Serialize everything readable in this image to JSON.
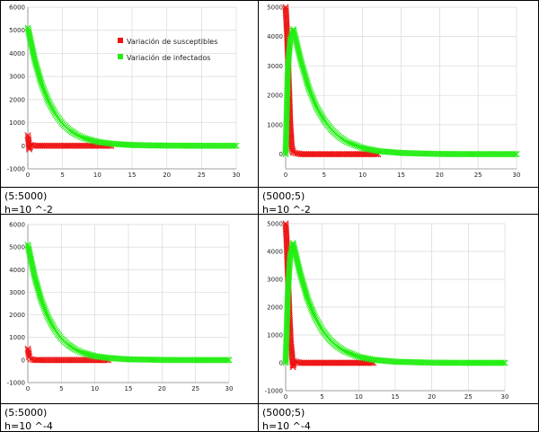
{
  "legend": {
    "susceptible_label": "Variación de susceptibles",
    "infected_label": "Variación de infectados"
  },
  "colors": {
    "susceptible": "#ee1111",
    "infected": "#22ee11",
    "grid": "#d8d8d8",
    "axis": "#888888"
  },
  "panels": [
    {
      "caption_line1": "(5:5000)",
      "caption_line2": "h=10 ^-2",
      "show_legend": true
    },
    {
      "caption_line1": "(5000;5)",
      "caption_line2": "h=10 ^-2",
      "show_legend": false
    },
    {
      "caption_line1": "(5:5000)",
      "caption_line2": "h=10 ^-4",
      "show_legend": false
    },
    {
      "caption_line1": "(5000;5)",
      "caption_line2": "h=10 ^-4",
      "show_legend": false
    }
  ],
  "chart_data": [
    {
      "type": "scatter",
      "marker": "x",
      "xlim": [
        0,
        30
      ],
      "ylim": [
        -1000,
        6000
      ],
      "xticks": [
        0,
        5,
        10,
        15,
        20,
        25,
        30
      ],
      "yticks": [
        -1000,
        0,
        1000,
        2000,
        3000,
        4000,
        5000,
        6000
      ],
      "grid": true,
      "legend": "top-center",
      "series": [
        {
          "name": "Variación de susceptibles",
          "points": [
            [
              0,
              450
            ],
            [
              0.1,
              200
            ],
            [
              0.2,
              -150
            ],
            [
              0.4,
              30
            ],
            [
              1,
              0
            ],
            [
              2,
              0
            ],
            [
              4,
              0
            ],
            [
              6,
              0
            ],
            [
              8,
              0
            ],
            [
              10,
              0
            ],
            [
              12,
              0
            ]
          ]
        },
        {
          "name": "Variación de infectados",
          "points": [
            [
              0,
              5100
            ],
            [
              0.5,
              4400
            ],
            [
              1,
              3700
            ],
            [
              2,
              2650
            ],
            [
              3,
              1900
            ],
            [
              4,
              1350
            ],
            [
              5,
              950
            ],
            [
              6,
              680
            ],
            [
              7,
              480
            ],
            [
              8,
              340
            ],
            [
              10,
              170
            ],
            [
              12,
              90
            ],
            [
              15,
              30
            ],
            [
              20,
              5
            ],
            [
              25,
              0
            ],
            [
              30,
              0
            ]
          ]
        }
      ]
    },
    {
      "type": "scatter",
      "marker": "x",
      "xlim": [
        0,
        30
      ],
      "ylim": [
        -500,
        5000
      ],
      "xticks": [
        0,
        5,
        10,
        15,
        20,
        25,
        30
      ],
      "yticks": [
        0,
        1000,
        2000,
        3000,
        4000,
        5000
      ],
      "grid": true,
      "series": [
        {
          "name": "Variación de susceptibles",
          "points": [
            [
              0,
              5000
            ],
            [
              0.2,
              4000
            ],
            [
              0.4,
              2500
            ],
            [
              0.6,
              1000
            ],
            [
              0.8,
              200
            ],
            [
              1,
              50
            ],
            [
              2,
              0
            ],
            [
              4,
              0
            ],
            [
              6,
              0
            ],
            [
              8,
              0
            ],
            [
              10,
              0
            ],
            [
              12,
              0
            ]
          ]
        },
        {
          "name": "Variación de infectados",
          "points": [
            [
              0,
              0
            ],
            [
              0.3,
              3000
            ],
            [
              0.6,
              3900
            ],
            [
              1,
              4250
            ],
            [
              1.5,
              3700
            ],
            [
              2,
              3150
            ],
            [
              3,
              2250
            ],
            [
              4,
              1600
            ],
            [
              5,
              1150
            ],
            [
              6,
              820
            ],
            [
              7,
              580
            ],
            [
              8,
              410
            ],
            [
              10,
              210
            ],
            [
              12,
              105
            ],
            [
              15,
              40
            ],
            [
              20,
              6
            ],
            [
              25,
              0
            ],
            [
              30,
              0
            ]
          ]
        }
      ]
    },
    {
      "type": "scatter",
      "marker": "x",
      "xlim": [
        0,
        30
      ],
      "ylim": [
        -1000,
        6000
      ],
      "xticks": [
        0,
        5,
        10,
        15,
        20,
        25,
        30
      ],
      "yticks": [
        -1000,
        0,
        1000,
        2000,
        3000,
        4000,
        5000,
        6000
      ],
      "grid": true,
      "series": [
        {
          "name": "Variación de susceptibles",
          "points": [
            [
              0,
              500
            ],
            [
              0.1,
              350
            ],
            [
              0.2,
              120
            ],
            [
              0.4,
              40
            ],
            [
              1,
              0
            ],
            [
              2,
              0
            ],
            [
              4,
              0
            ],
            [
              6,
              0
            ],
            [
              8,
              0
            ],
            [
              10,
              0
            ],
            [
              12,
              0
            ]
          ]
        },
        {
          "name": "Variación de infectados",
          "points": [
            [
              0,
              5100
            ],
            [
              0.5,
              4400
            ],
            [
              1,
              3700
            ],
            [
              2,
              2650
            ],
            [
              3,
              1900
            ],
            [
              4,
              1350
            ],
            [
              5,
              950
            ],
            [
              6,
              680
            ],
            [
              7,
              480
            ],
            [
              8,
              340
            ],
            [
              10,
              170
            ],
            [
              12,
              90
            ],
            [
              15,
              30
            ],
            [
              20,
              5
            ],
            [
              25,
              0
            ],
            [
              30,
              0
            ]
          ]
        }
      ]
    },
    {
      "type": "scatter",
      "marker": "x",
      "xlim": [
        0,
        30
      ],
      "ylim": [
        -1000,
        5000
      ],
      "xticks": [
        0,
        5,
        10,
        15,
        20,
        25,
        30
      ],
      "yticks": [
        -1000,
        0,
        1000,
        2000,
        3000,
        4000,
        5000
      ],
      "grid": true,
      "series": [
        {
          "name": "Variación de susceptibles",
          "points": [
            [
              0,
              5000
            ],
            [
              0.15,
              4300
            ],
            [
              0.3,
              3200
            ],
            [
              0.5,
              1800
            ],
            [
              0.7,
              700
            ],
            [
              0.9,
              200
            ],
            [
              1,
              -150
            ],
            [
              1.2,
              50
            ],
            [
              2,
              0
            ],
            [
              4,
              0
            ],
            [
              6,
              0
            ],
            [
              8,
              0
            ],
            [
              10,
              0
            ],
            [
              12,
              0
            ]
          ]
        },
        {
          "name": "Variación de infectados",
          "points": [
            [
              0,
              0
            ],
            [
              0.3,
              2500
            ],
            [
              0.6,
              3800
            ],
            [
              1,
              4300
            ],
            [
              1.5,
              3750
            ],
            [
              2,
              3200
            ],
            [
              3,
              2300
            ],
            [
              4,
              1650
            ],
            [
              5,
              1180
            ],
            [
              6,
              840
            ],
            [
              7,
              600
            ],
            [
              8,
              430
            ],
            [
              10,
              215
            ],
            [
              12,
              110
            ],
            [
              15,
              40
            ],
            [
              20,
              6
            ],
            [
              25,
              0
            ],
            [
              30,
              0
            ]
          ]
        }
      ]
    }
  ]
}
